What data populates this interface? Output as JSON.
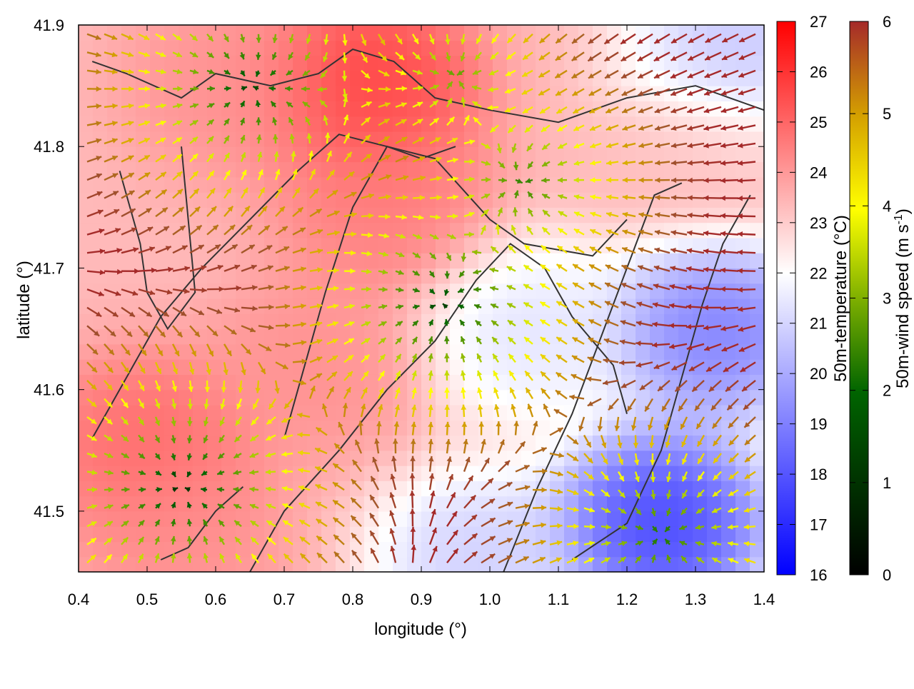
{
  "chart_data": {
    "type": "heatmap",
    "xlabel": "longitude (°)",
    "ylabel": "latitude (°)",
    "xlim": [
      0.4,
      1.4
    ],
    "ylim": [
      41.45,
      41.9
    ],
    "x_ticks": [
      "0.4",
      "0.5",
      "0.6",
      "0.7",
      "0.8",
      "0.9",
      "1.0",
      "1.1",
      "1.2",
      "1.3",
      "1.4"
    ],
    "y_ticks": [
      "41.5",
      "41.6",
      "41.7",
      "41.8",
      "41.9"
    ],
    "temperature": {
      "label": "50m-temperature (°C)",
      "range": [
        16,
        27
      ],
      "ticks": [
        "16",
        "17",
        "18",
        "19",
        "20",
        "21",
        "22",
        "23",
        "24",
        "25",
        "26",
        "27"
      ],
      "colors": [
        "#0000ff",
        "#ffffff",
        "#ff0000"
      ],
      "hot_spots": [
        {
          "lon": 0.5,
          "lat": 41.55,
          "value": 25
        },
        {
          "lon": 0.62,
          "lat": 41.85,
          "value": 24
        },
        {
          "lon": 0.82,
          "lat": 41.85,
          "value": 26
        },
        {
          "lon": 0.85,
          "lat": 41.75,
          "value": 24.5
        },
        {
          "lon": 0.75,
          "lat": 41.62,
          "value": 24
        },
        {
          "lon": 0.55,
          "lat": 41.48,
          "value": 24
        },
        {
          "lon": 1.3,
          "lat": 41.8,
          "value": 23
        }
      ],
      "cold_spots": [
        {
          "lon": 1.25,
          "lat": 41.49,
          "value": 16.5
        },
        {
          "lon": 1.33,
          "lat": 41.65,
          "value": 18
        },
        {
          "lon": 1.05,
          "lat": 41.65,
          "value": 20.5
        },
        {
          "lon": 1.35,
          "lat": 41.87,
          "value": 19.5
        },
        {
          "lon": 0.98,
          "lat": 41.46,
          "value": 20
        }
      ]
    },
    "wind": {
      "label": "50m-wind speed (m s-1)",
      "label_main": "50m-wind speed (m s",
      "label_sup": "-1",
      "label_end": ")",
      "range": [
        0,
        6
      ],
      "ticks": [
        "0",
        "1",
        "2",
        "3",
        "4",
        "5",
        "6"
      ],
      "colors": [
        "#000000",
        "#006400",
        "#7fb000",
        "#ffff00",
        "#d4a000",
        "#a0522d",
        "#a52a2a"
      ],
      "calm_centers": [
        {
          "lon": 0.55,
          "lat": 41.52,
          "speed": 0.3
        },
        {
          "lon": 0.93,
          "lat": 41.67,
          "speed": 0.5
        },
        {
          "lon": 0.65,
          "lat": 41.85,
          "speed": 0.5
        },
        {
          "lon": 1.05,
          "lat": 41.77,
          "speed": 1.2
        },
        {
          "lon": 1.25,
          "lat": 41.48,
          "speed": 1.0
        },
        {
          "lon": 0.95,
          "lat": 41.86,
          "speed": 1.6
        }
      ]
    },
    "contours": [
      [
        [
          0.42,
          41.87
        ],
        [
          0.47,
          41.86
        ],
        [
          0.55,
          41.84
        ],
        [
          0.6,
          41.86
        ],
        [
          0.68,
          41.85
        ],
        [
          0.75,
          41.86
        ],
        [
          0.8,
          41.88
        ],
        [
          0.86,
          41.87
        ],
        [
          0.92,
          41.84
        ],
        [
          1.0,
          41.83
        ],
        [
          1.1,
          41.82
        ],
        [
          1.2,
          41.84
        ],
        [
          1.3,
          41.85
        ],
        [
          1.4,
          41.83
        ]
      ],
      [
        [
          0.42,
          41.56
        ],
        [
          0.47,
          41.61
        ],
        [
          0.52,
          41.66
        ],
        [
          0.58,
          41.7
        ],
        [
          0.65,
          41.74
        ],
        [
          0.72,
          41.78
        ],
        [
          0.78,
          41.81
        ],
        [
          0.85,
          41.8
        ],
        [
          0.9,
          41.79
        ],
        [
          0.95,
          41.8
        ]
      ],
      [
        [
          0.7,
          41.56
        ],
        [
          0.73,
          41.62
        ],
        [
          0.76,
          41.68
        ],
        [
          0.8,
          41.75
        ],
        [
          0.85,
          41.8
        ],
        [
          0.92,
          41.79
        ],
        [
          1.0,
          41.74
        ],
        [
          1.05,
          41.72
        ],
        [
          1.15,
          41.71
        ],
        [
          1.2,
          41.74
        ]
      ],
      [
        [
          0.65,
          41.45
        ],
        [
          0.7,
          41.5
        ],
        [
          0.78,
          41.55
        ],
        [
          0.85,
          41.6
        ],
        [
          0.92,
          41.64
        ],
        [
          0.98,
          41.69
        ],
        [
          1.03,
          41.72
        ],
        [
          1.08,
          41.7
        ],
        [
          1.12,
          41.66
        ],
        [
          1.18,
          41.62
        ],
        [
          1.2,
          41.58
        ]
      ],
      [
        [
          1.02,
          41.45
        ],
        [
          1.07,
          41.52
        ],
        [
          1.12,
          41.58
        ],
        [
          1.16,
          41.64
        ],
        [
          1.2,
          41.7
        ],
        [
          1.24,
          41.76
        ],
        [
          1.28,
          41.77
        ]
      ],
      [
        [
          1.12,
          41.46
        ],
        [
          1.2,
          41.49
        ],
        [
          1.25,
          41.55
        ],
        [
          1.28,
          41.61
        ],
        [
          1.31,
          41.67
        ],
        [
          1.34,
          41.72
        ],
        [
          1.38,
          41.76
        ]
      ],
      [
        [
          0.52,
          41.46
        ],
        [
          0.56,
          41.47
        ],
        [
          0.6,
          41.5
        ],
        [
          0.64,
          41.52
        ]
      ],
      [
        [
          0.46,
          41.78
        ],
        [
          0.49,
          41.72
        ],
        [
          0.5,
          41.68
        ],
        [
          0.53,
          41.65
        ],
        [
          0.57,
          41.68
        ],
        [
          0.56,
          41.74
        ],
        [
          0.55,
          41.8
        ]
      ]
    ]
  }
}
